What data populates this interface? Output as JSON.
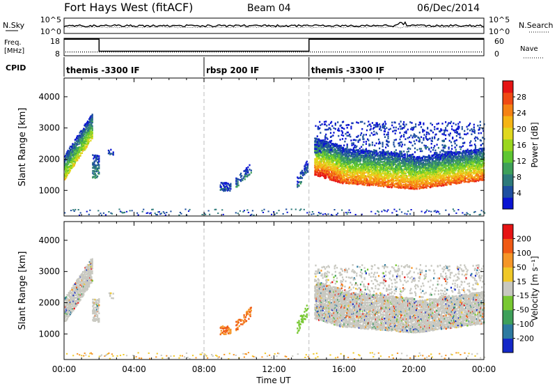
{
  "header": {
    "title": "Fort Hays West (fitACF)",
    "beam": "Beam 04",
    "date": "06/Dec/2014"
  },
  "sky_panel": {
    "left_label": "N.Sky",
    "right_label": "N.Search",
    "left_ticks": [
      "10^5",
      "10^0"
    ],
    "right_ticks": [
      "10^5",
      "10^0"
    ]
  },
  "freq_panel": {
    "left_label_line1": "Freq.",
    "left_label_line2": "[MHz]",
    "right_label": "Nave",
    "left_ticks": [
      "18",
      "8"
    ],
    "right_ticks": [
      "60",
      "0"
    ],
    "freq_steps": [
      {
        "start_hour": 0.0,
        "end_hour": 2.0,
        "freq": 17.5
      },
      {
        "start_hour": 2.0,
        "end_hour": 14.0,
        "freq": 10.6
      },
      {
        "start_hour": 14.0,
        "end_hour": 24.0,
        "freq": 17.5
      }
    ],
    "nave_level": 13
  },
  "cpid": {
    "label": "CPID",
    "segments": [
      {
        "start_hour": 0,
        "text": "themis -3300 IF"
      },
      {
        "start_hour": 8,
        "text": "rbsp 200 IF"
      },
      {
        "start_hour": 14,
        "text": "themis -3300 IF"
      }
    ]
  },
  "power_panel": {
    "ylabel": "Slant Range [km]",
    "yticks": [
      "4000",
      "3000",
      "2000",
      "1000"
    ],
    "colorbar_label": "Power [dB]",
    "colorbar_ticks": [
      "28",
      "24",
      "20",
      "16",
      "12",
      "8",
      "4"
    ],
    "colors": [
      "#0a14d2",
      "#1e4fa0",
      "#2d7a7a",
      "#3ea05a",
      "#5ec632",
      "#9ad61e",
      "#e0d81e",
      "#f5b414",
      "#f58214",
      "#f04a14",
      "#e61414"
    ]
  },
  "velocity_panel": {
    "ylabel": "Slant Range [km]",
    "yticks": [
      "4000",
      "3000",
      "2000",
      "1000"
    ],
    "colorbar_label": "Velocity [m s⁻¹]",
    "colorbar_ticks": [
      "200",
      "100",
      "50",
      "15",
      "-15",
      "-50",
      "-100",
      "-200"
    ],
    "colors": [
      "#1428c8",
      "#2d7aa0",
      "#3ea05a",
      "#78c832",
      "#c8c8c0",
      "#f0c828",
      "#f59628",
      "#f05a14",
      "#e61414"
    ]
  },
  "xaxis": {
    "label": "Time UT",
    "ticks": [
      "00:00",
      "04:00",
      "08:00",
      "12:00",
      "16:00",
      "20:00",
      "00:00"
    ]
  },
  "chart_data": {
    "type": "heatmap",
    "title": "Fort Hays West (fitACF)",
    "xlabel": "Time UT",
    "ylabel": "Slant Range [km]",
    "xlim": [
      0,
      24
    ],
    "ylim": [
      180,
      4600
    ],
    "vertical_markers_hours": [
      8,
      14
    ],
    "power_regions": [
      {
        "t0": 0.0,
        "t1": 1.6,
        "r_start": 1350,
        "r_end": 2700,
        "slope": 700,
        "width": 800,
        "density": 0.7,
        "v_hi": 6
      },
      {
        "t0": 1.6,
        "t1": 2.0,
        "r_start": 1400,
        "r_end": 1400,
        "slope": 0,
        "width": 750,
        "density": 0.5,
        "v_hi": 3
      },
      {
        "t0": 2.5,
        "t1": 2.8,
        "r_start": 2150,
        "r_end": 2150,
        "slope": 0,
        "width": 150,
        "density": 0.45,
        "v_hi": 1
      },
      {
        "t0": 8.9,
        "t1": 9.5,
        "r_start": 1000,
        "r_end": 1000,
        "slope": 0,
        "width": 250,
        "density": 0.5,
        "v_hi": 1
      },
      {
        "t0": 9.8,
        "t1": 10.7,
        "r_start": 1100,
        "r_end": 1600,
        "slope": 0,
        "width": 300,
        "density": 0.35,
        "v_hi": 2
      },
      {
        "t0": 13.3,
        "t1": 13.9,
        "r_start": 1050,
        "r_end": 1600,
        "slope": 0,
        "width": 400,
        "density": 0.35,
        "v_hi": 2
      },
      {
        "t0": 14.3,
        "t1": 15.8,
        "r_start": 1500,
        "r_end": 1250,
        "slope": 0,
        "width": 1200,
        "density": 0.75,
        "v_hi": 10
      },
      {
        "t0": 15.8,
        "t1": 20.0,
        "r_start": 1250,
        "r_end": 1050,
        "slope": 0,
        "width": 1100,
        "density": 0.7,
        "v_hi": 9
      },
      {
        "t0": 20.0,
        "t1": 24.0,
        "r_start": 1050,
        "r_end": 1350,
        "slope": 0,
        "width": 1000,
        "density": 0.7,
        "v_hi": 9
      },
      {
        "t0": 14.3,
        "t1": 24.0,
        "r_start": 2200,
        "r_end": 2200,
        "slope": 0,
        "width": 1000,
        "density": 0.12,
        "v_hi": 1
      }
    ],
    "ground_scatter_band": {
      "t0": 0,
      "t1": 24,
      "r_start": 200,
      "r_end": 400,
      "density": 0.4
    }
  }
}
